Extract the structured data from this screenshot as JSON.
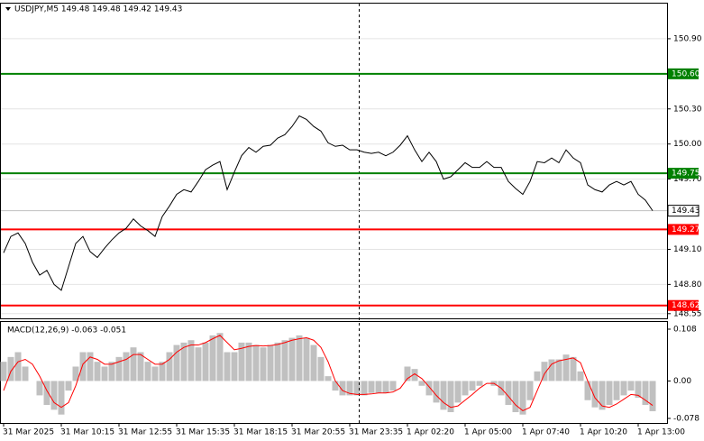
{
  "chart_data": [
    {
      "type": "line",
      "title": "USDJPY,M5  149.48 149.48 149.42 149.43",
      "color": "#000000",
      "values": [
        149.07,
        149.21,
        149.24,
        149.15,
        148.99,
        148.88,
        148.92,
        148.8,
        148.75,
        148.95,
        149.15,
        149.21,
        149.08,
        149.03,
        149.11,
        149.18,
        149.24,
        149.28,
        149.36,
        149.3,
        149.26,
        149.21,
        149.38,
        149.47,
        149.57,
        149.61,
        149.59,
        149.68,
        149.78,
        149.82,
        149.85,
        149.61,
        149.76,
        149.9,
        149.97,
        149.93,
        149.98,
        149.99,
        150.05,
        150.08,
        150.15,
        150.24,
        150.21,
        150.15,
        150.11,
        150.01,
        149.98,
        149.99,
        149.95,
        149.95,
        149.93,
        149.92,
        149.93,
        149.9,
        149.93,
        149.99,
        150.07,
        149.95,
        149.85,
        149.93,
        149.85,
        149.7,
        149.72,
        149.78,
        149.84,
        149.8,
        149.8,
        149.85,
        149.8,
        149.8,
        149.68,
        149.62,
        149.57,
        149.68,
        149.85,
        149.84,
        149.88,
        149.84,
        149.95,
        149.88,
        149.84,
        149.65,
        149.61,
        149.59,
        149.65,
        149.68,
        149.65,
        149.68,
        149.57,
        149.52,
        149.43
      ],
      "ylim": [
        148.51,
        151.2
      ],
      "yticks": [
        {
          "value": 150.9,
          "label": "150.90"
        },
        {
          "value": 150.3,
          "label": "150.30"
        },
        {
          "value": 150,
          "label": "150.00"
        },
        {
          "value": 149.7,
          "label": "149.70"
        },
        {
          "value": 149.1,
          "label": "149.10"
        },
        {
          "value": 148.8,
          "label": "148.80"
        },
        148.55
      ],
      "levels": [
        {
          "value": 150.6,
          "label": "150.60",
          "color": "#008000"
        },
        {
          "value": 149.75,
          "label": "149.75",
          "color": "#008000"
        },
        {
          "value": 149.27,
          "label": "149.27",
          "color": "#ff0000"
        },
        {
          "value": 148.62,
          "label": "148.62",
          "color": "#ff0000"
        }
      ],
      "last_price": {
        "value": 149.43,
        "label": "149.43",
        "color": "#c0c0c0"
      },
      "grid": true,
      "xticks": [
        {
          "value": 0,
          "label": "31 Mar 2025"
        },
        {
          "value": 8,
          "label": "31 Mar 10:15"
        },
        {
          "value": 16,
          "label": "31 Mar 12:55"
        },
        {
          "value": 24,
          "label": "31 Mar 15:35"
        },
        {
          "value": 32,
          "label": "31 Mar 18:15"
        },
        {
          "value": 40,
          "label": "31 Mar 20:55"
        },
        {
          "value": 48,
          "label": "31 Mar 23:35"
        },
        {
          "value": 56,
          "label": "1 Apr 02:20"
        },
        {
          "value": 64,
          "label": "1 Apr 05:00"
        },
        {
          "value": 72,
          "label": "1 Apr 07:40"
        },
        {
          "value": 80,
          "label": "1 Apr 10:20"
        },
        {
          "value": 88,
          "label": "1 Apr 13:00"
        }
      ]
    },
    {
      "type": "bar",
      "title": "MACD(12,26,9) -0.063 -0.051",
      "series": [
        {
          "type": "bar",
          "color": "#c0c0c0",
          "values": [
            0.04,
            0.05,
            0.06,
            0.03,
            0,
            -0.03,
            -0.05,
            -0.06,
            -0.07,
            -0.02,
            0.03,
            0.06,
            0.06,
            0.04,
            0.03,
            0.04,
            0.05,
            0.06,
            0.07,
            0.06,
            0.04,
            0.03,
            0.04,
            0.06,
            0.075,
            0.08,
            0.085,
            0.07,
            0.08,
            0.095,
            0.1,
            0.06,
            0.06,
            0.08,
            0.08,
            0.075,
            0.07,
            0.075,
            0.08,
            0.085,
            0.09,
            0.095,
            0.09,
            0.075,
            0.05,
            0.01,
            -0.02,
            -0.03,
            -0.03,
            -0.03,
            -0.03,
            -0.025,
            -0.025,
            -0.025,
            -0.02,
            0,
            0.03,
            0.025,
            -0.01,
            -0.03,
            -0.045,
            -0.06,
            -0.065,
            -0.045,
            -0.03,
            -0.02,
            -0.01,
            0,
            -0.01,
            -0.03,
            -0.05,
            -0.065,
            -0.07,
            -0.04,
            0.02,
            0.04,
            0.045,
            0.045,
            0.055,
            0.05,
            0.02,
            -0.04,
            -0.055,
            -0.06,
            -0.05,
            -0.04,
            -0.03,
            -0.02,
            -0.035,
            -0.05,
            -0.063
          ]
        },
        {
          "type": "line",
          "color": "#ff0000",
          "values": [
            -0.02,
            0.02,
            0.04,
            0.045,
            0.035,
            0.01,
            -0.02,
            -0.045,
            -0.055,
            -0.045,
            -0.01,
            0.035,
            0.05,
            0.045,
            0.035,
            0.035,
            0.04,
            0.045,
            0.055,
            0.055,
            0.045,
            0.035,
            0.035,
            0.045,
            0.06,
            0.07,
            0.075,
            0.075,
            0.08,
            0.088,
            0.095,
            0.08,
            0.065,
            0.068,
            0.072,
            0.074,
            0.073,
            0.074,
            0.076,
            0.08,
            0.085,
            0.088,
            0.09,
            0.085,
            0.07,
            0.04,
            0,
            -0.02,
            -0.026,
            -0.028,
            -0.028,
            -0.027,
            -0.025,
            -0.025,
            -0.023,
            -0.015,
            0.005,
            0.015,
            0.005,
            -0.012,
            -0.03,
            -0.045,
            -0.055,
            -0.052,
            -0.04,
            -0.028,
            -0.015,
            -0.005,
            -0.005,
            -0.015,
            -0.032,
            -0.05,
            -0.062,
            -0.055,
            -0.02,
            0.015,
            0.035,
            0.042,
            0.045,
            0.048,
            0.038,
            0,
            -0.035,
            -0.052,
            -0.055,
            -0.048,
            -0.038,
            -0.028,
            -0.03,
            -0.04,
            -0.051
          ]
        }
      ],
      "ylim": [
        -0.0875,
        0.123
      ],
      "yticks": [
        0.108,
        {
          "value": 0,
          "label": "0.00"
        },
        -0.078
      ]
    }
  ]
}
